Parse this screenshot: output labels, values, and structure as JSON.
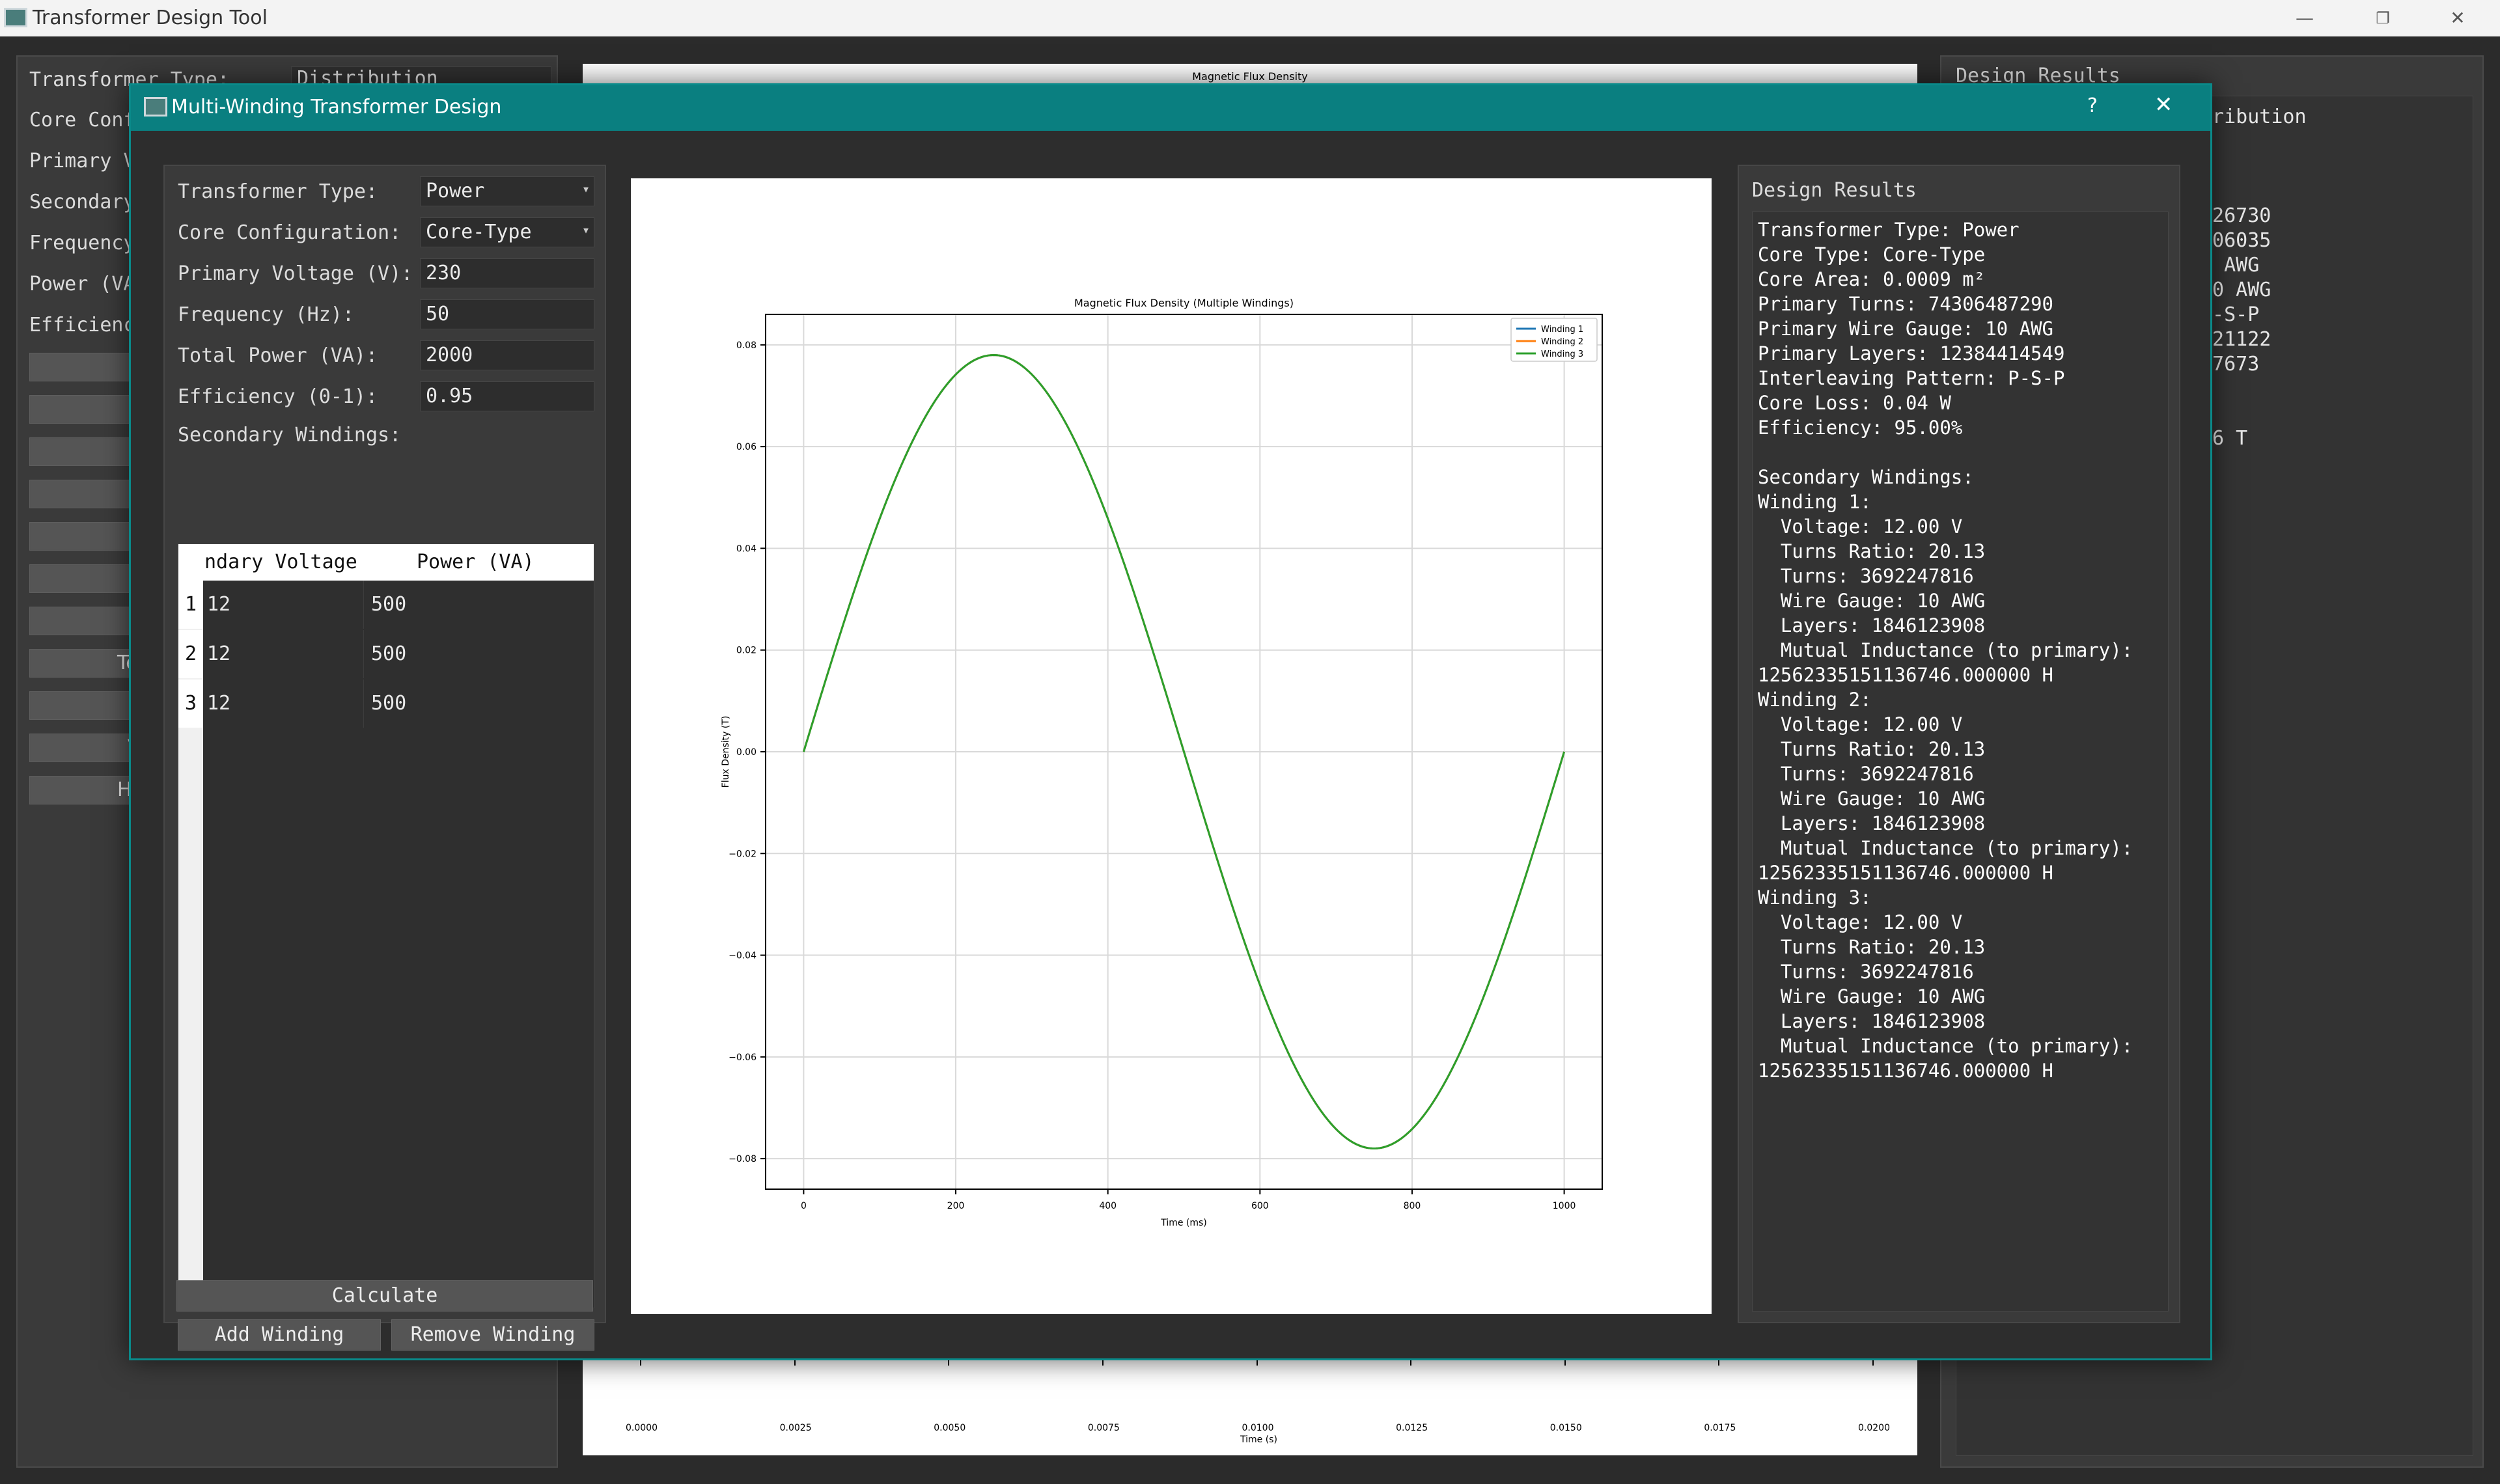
{
  "main_window": {
    "title": "Transformer Design Tool",
    "controls": {
      "minimize": "—",
      "maximize": "❐",
      "close": "✕"
    },
    "left_labels": [
      "Transformer Type:",
      "Core Conf",
      "Primary V",
      "Secondary",
      "Frequency",
      "Power (VA",
      "Efficienc"
    ],
    "type_value": "Distribution",
    "button_fragments": [
      "Ter",
      "V",
      "Ha"
    ],
    "plot_title": "Magnetic Flux Density",
    "plot_xlabel": "Time (s)",
    "plot_xticks": [
      "0.0000",
      "0.0025",
      "0.0050",
      "0.0075",
      "0.0100",
      "0.0125",
      "0.0150",
      "0.0175",
      "0.0200"
    ],
    "results_title": "Design Results",
    "results_fragments": [
      "tribution",
      "126730",
      "006035",
      "0 AWG",
      "10 AWG",
      "P-S-P",
      "021122",
      "67673",
      "26 T"
    ]
  },
  "dialog": {
    "title": "Multi-Winding Transformer Design",
    "help": "?",
    "close": "✕",
    "form": {
      "transformer_type": {
        "label": "Transformer Type:",
        "value": "Power"
      },
      "core_config": {
        "label": "Core Configuration:",
        "value": "Core-Type"
      },
      "primary_voltage": {
        "label": "Primary Voltage (V):",
        "value": "230"
      },
      "frequency": {
        "label": "Frequency (Hz):",
        "value": "50"
      },
      "total_power": {
        "label": "Total Power (VA):",
        "value": "2000"
      },
      "efficiency": {
        "label": "Efficiency (0-1):",
        "value": "0.95"
      },
      "secondary_label": "Secondary Windings:"
    },
    "table": {
      "headers": [
        "ndary Voltage",
        "Power (VA)"
      ],
      "rows": [
        {
          "num": "1",
          "voltage": "12",
          "power": "500"
        },
        {
          "num": "2",
          "voltage": "12",
          "power": "500"
        },
        {
          "num": "3",
          "voltage": "12",
          "power": "500"
        }
      ]
    },
    "buttons": {
      "add": "Add Winding",
      "remove": "Remove Winding",
      "calculate": "Calculate"
    },
    "results_title": "Design Results",
    "results_lines": [
      "Transformer Type: Power",
      "Core Type: Core-Type",
      "Core Area: 0.0009 m²",
      "Primary Turns: 74306487290",
      "Primary Wire Gauge: 10 AWG",
      "Primary Layers: 12384414549",
      "Interleaving Pattern: P-S-P",
      "Core Loss: 0.04 W",
      "Efficiency: 95.00%",
      "",
      "Secondary Windings:",
      "Winding 1:",
      "  Voltage: 12.00 V",
      "  Turns Ratio: 20.13",
      "  Turns: 3692247816",
      "  Wire Gauge: 10 AWG",
      "  Layers: 1846123908",
      "  Mutual Inductance (to primary):",
      "12562335151136746.000000 H",
      "Winding 2:",
      "  Voltage: 12.00 V",
      "  Turns Ratio: 20.13",
      "  Turns: 3692247816",
      "  Wire Gauge: 10 AWG",
      "  Layers: 1846123908",
      "  Mutual Inductance (to primary):",
      "12562335151136746.000000 H",
      "Winding 3:",
      "  Voltage: 12.00 V",
      "  Turns Ratio: 20.13",
      "  Turns: 3692247816",
      "  Wire Gauge: 10 AWG",
      "  Layers: 1846123908",
      "  Mutual Inductance (to primary):",
      "12562335151136746.000000 H"
    ]
  },
  "chart_data": {
    "type": "line",
    "title": "Magnetic Flux Density (Multiple Windings)",
    "xlabel": "Time (ms)",
    "ylabel": "Flux Density (T)",
    "xlim": [
      -50,
      1050
    ],
    "ylim": [
      -0.086,
      0.086
    ],
    "xticks": [
      0,
      200,
      400,
      600,
      800,
      1000
    ],
    "yticks": [
      -0.08,
      -0.06,
      -0.04,
      -0.02,
      0.0,
      0.02,
      0.04,
      0.06,
      0.08
    ],
    "ytick_labels": [
      "−0.08",
      "−0.06",
      "−0.04",
      "−0.02",
      "0.00",
      "0.02",
      "0.04",
      "0.06",
      "0.08"
    ],
    "grid": true,
    "legend_position": "top-right",
    "series": [
      {
        "name": "Winding 1",
        "color": "#1f77b4",
        "amplitude": 0.078,
        "period_ms": 1000
      },
      {
        "name": "Winding 2",
        "color": "#ff7f0e",
        "amplitude": 0.078,
        "period_ms": 1000
      },
      {
        "name": "Winding 3",
        "color": "#2ca02c",
        "amplitude": 0.078,
        "period_ms": 1000
      }
    ],
    "x_range": [
      0,
      1000
    ]
  }
}
